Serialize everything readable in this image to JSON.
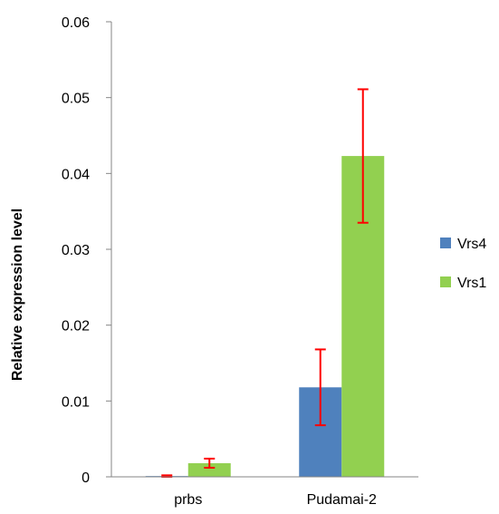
{
  "chart_data": {
    "type": "bar",
    "title": "",
    "xlabel": "",
    "ylabel": "Relative expression level",
    "categories": [
      "prbs",
      "Pudamai-2"
    ],
    "series": [
      {
        "name": "Vrs4",
        "color": "#4f81bd",
        "values": [
          0.0001,
          0.0118
        ],
        "errors": [
          0.0001,
          0.005
        ]
      },
      {
        "name": "Vrs1",
        "color": "#92d050",
        "values": [
          0.0018,
          0.0423
        ],
        "errors": [
          0.0006,
          0.0088
        ]
      }
    ],
    "error_bar_color": "#ff0000",
    "ylim": [
      0,
      0.06
    ],
    "yticks": [
      "0",
      "0.01",
      "0.02",
      "0.03",
      "0.04",
      "0.05",
      "0.06"
    ],
    "grid": false,
    "legend_position": "right"
  }
}
